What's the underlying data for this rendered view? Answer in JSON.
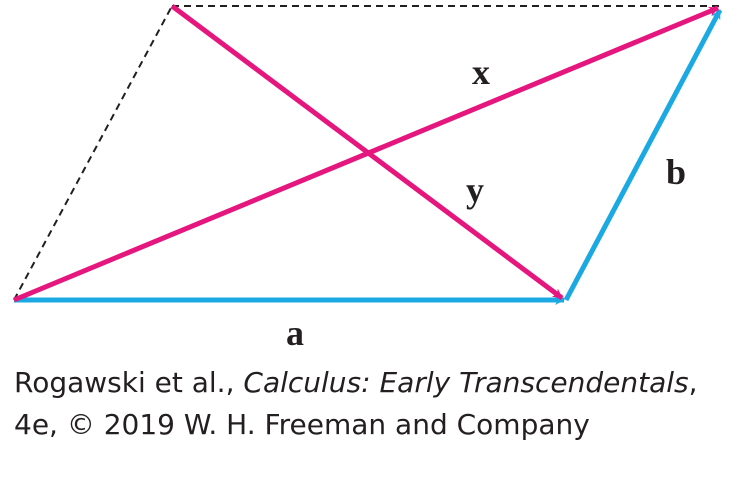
{
  "colors": {
    "side_vectors": "#1aa9e2",
    "diagonal_vectors": "#e5177e",
    "dashed_sides": "#231f20",
    "label_text": "#231f20"
  },
  "diagram": {
    "type": "parallelogram vector diagram",
    "vectors": [
      {
        "id": "a",
        "label": "a",
        "color_key": "side_vectors"
      },
      {
        "id": "b",
        "label": "b",
        "color_key": "side_vectors"
      },
      {
        "id": "x",
        "label": "x",
        "color_key": "diagonal_vectors"
      },
      {
        "id": "y",
        "label": "y",
        "color_key": "diagonal_vectors"
      }
    ],
    "dashed_sides": 2
  },
  "caption": {
    "part1": "Rogawski et al., ",
    "title": "Calculus: Early Transcendentals",
    "part2": ", 4e, © 2019 W. H. Freeman and Company"
  }
}
